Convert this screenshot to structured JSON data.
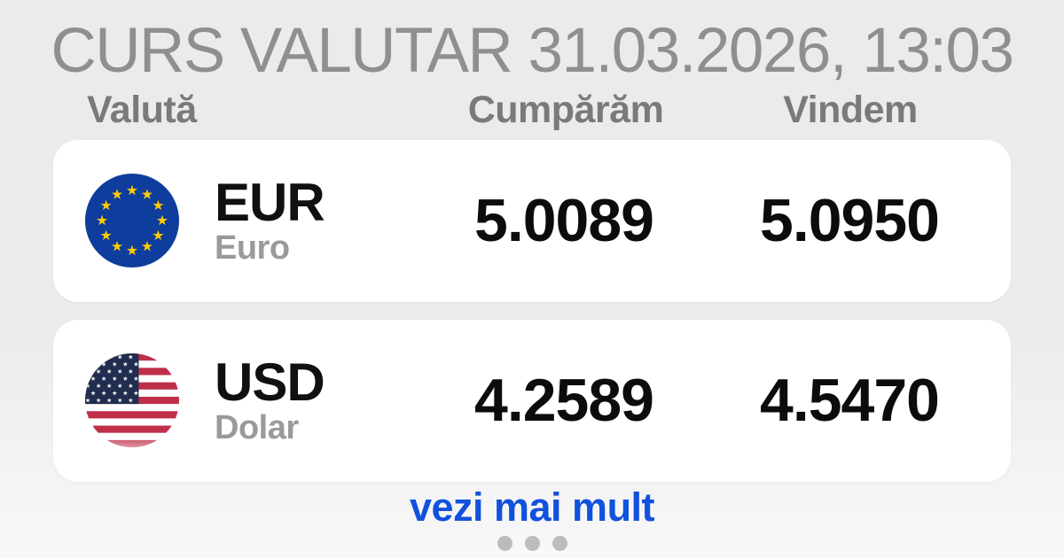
{
  "header": {
    "title": "CURS VALUTAR 31.03.2026, 13:03"
  },
  "table": {
    "columns": {
      "currency": "Valută",
      "buy": "Cumpărăm",
      "sell": "Vindem"
    },
    "rows": [
      {
        "code": "EUR",
        "name": "Euro",
        "buy": "5.0089",
        "sell": "5.0950",
        "flag_icon": "eu-flag-icon"
      },
      {
        "code": "USD",
        "name": "Dolar",
        "buy": "4.2589",
        "sell": "4.5470",
        "flag_icon": "us-flag-icon"
      }
    ]
  },
  "footer": {
    "more_link": "vezi mai mult",
    "pagination_dots": 3
  },
  "colors": {
    "background_top": "#ebebeb",
    "background_bottom": "#f8f8f8",
    "card_background": "#ffffff",
    "title_gray": "#8f8f8f",
    "header_gray": "#7a7a7a",
    "rate_black": "#0c0c0c",
    "subname_gray": "#9a9a9a",
    "link_blue": "#1152dd",
    "dot_gray": "#bcbcbc",
    "eu_flag_blue": "#0e3d9d",
    "eu_flag_star_yellow": "#ffcc00",
    "us_flag_red": "#bf2f4a",
    "us_flag_navy": "#202d4e"
  }
}
